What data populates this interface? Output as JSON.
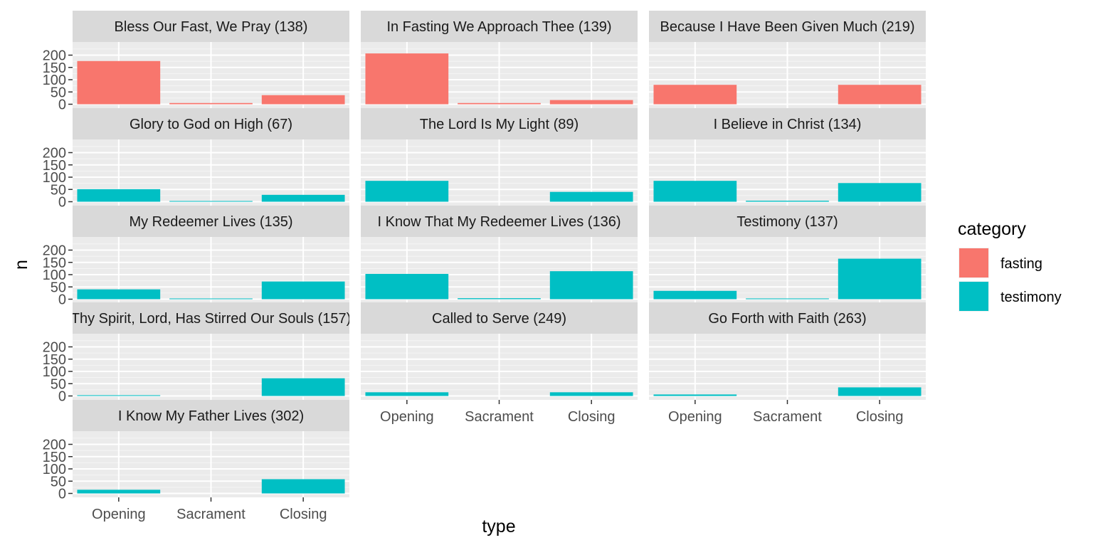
{
  "chart_data": {
    "type": "bar",
    "title": "",
    "xlabel": "type",
    "ylabel": "n",
    "categories": [
      "Opening",
      "Sacrament",
      "Closing"
    ],
    "ylim": [
      0,
      200
    ],
    "yticks": [
      0,
      50,
      100,
      150,
      200
    ],
    "grid": true,
    "legend": {
      "title": "category",
      "position": "right",
      "items": [
        {
          "name": "fasting",
          "color": "#F8766D"
        },
        {
          "name": "testimony",
          "color": "#00BFC4"
        }
      ]
    },
    "panels": [
      {
        "title": "Bless Our Fast, We Pray (138)",
        "category": "fasting",
        "values": [
          176,
          5,
          37
        ]
      },
      {
        "title": "In Fasting We Approach Thee (139)",
        "category": "fasting",
        "values": [
          207,
          5,
          17
        ]
      },
      {
        "title": "Because I Have Been Given Much (219)",
        "category": "fasting",
        "values": [
          79,
          0,
          79
        ]
      },
      {
        "title": "Glory to God on High (67)",
        "category": "testimony",
        "values": [
          51,
          2,
          28
        ]
      },
      {
        "title": "The Lord Is My Light (89)",
        "category": "testimony",
        "values": [
          85,
          0,
          40
        ]
      },
      {
        "title": "I Believe in Christ (134)",
        "category": "testimony",
        "values": [
          85,
          4,
          76
        ]
      },
      {
        "title": "My Redeemer Lives (135)",
        "category": "testimony",
        "values": [
          40,
          2,
          72
        ]
      },
      {
        "title": "I Know That My Redeemer Lives (136)",
        "category": "testimony",
        "values": [
          103,
          4,
          114
        ]
      },
      {
        "title": "Testimony (137)",
        "category": "testimony",
        "values": [
          34,
          3,
          165
        ]
      },
      {
        "title": "Thy Spirit, Lord, Has Stirred Our Souls (157)",
        "category": "testimony",
        "values": [
          3,
          0,
          72
        ]
      },
      {
        "title": "Called to Serve (249)",
        "category": "testimony",
        "values": [
          15,
          0,
          15
        ]
      },
      {
        "title": "Go Forth with Faith (263)",
        "category": "testimony",
        "values": [
          6,
          0,
          35
        ]
      },
      {
        "title": "I Know My Father Lives (302)",
        "category": "testimony",
        "values": [
          15,
          0,
          58
        ]
      }
    ]
  }
}
